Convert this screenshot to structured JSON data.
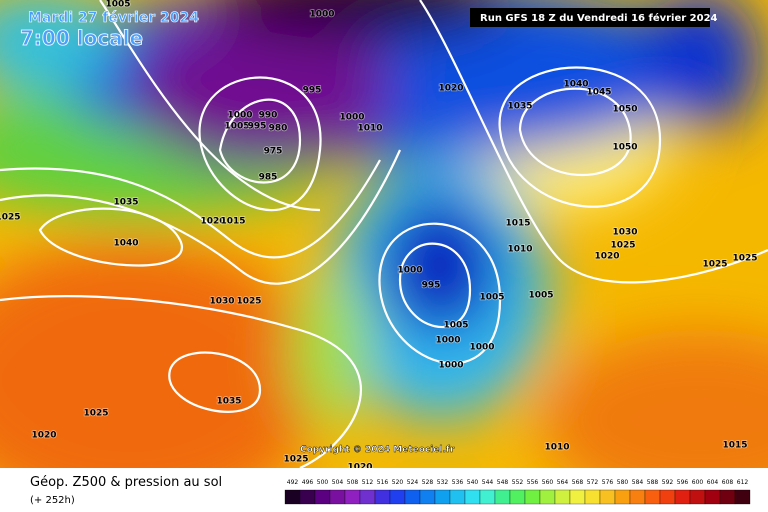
{
  "header": {
    "date": "Mardi 27 février 2024",
    "time": "7:00 locale",
    "run": "Run GFS 18 Z du Vendredi 16 février 2024"
  },
  "map": {
    "copyright": "Copyright © 2024 Meteociel.fr",
    "isobar_labels": [
      1005,
      1000,
      995,
      1020,
      1000,
      990,
      1005,
      995,
      980,
      975,
      985,
      1035,
      1040,
      1020,
      1015,
      1025,
      1030,
      1025,
      1035,
      1025,
      1020,
      1025,
      1020,
      1000,
      995,
      1005,
      1005,
      1005,
      1000,
      1000,
      1000,
      1010,
      1015,
      1000,
      1010,
      1035,
      1040,
      1045,
      1050,
      1050,
      1030,
      1025,
      1020,
      1025,
      1025,
      1010,
      1015
    ]
  },
  "footer": {
    "title": "Géop. Z500 & pression au sol",
    "lead": "(+ 252h)",
    "scale_labels": [
      492,
      496,
      500,
      504,
      508,
      512,
      516,
      520,
      524,
      528,
      532,
      536,
      540,
      544,
      548,
      552,
      556,
      560,
      564,
      568,
      572,
      576,
      580,
      584,
      588,
      592,
      596,
      600,
      604,
      608,
      612
    ]
  }
}
